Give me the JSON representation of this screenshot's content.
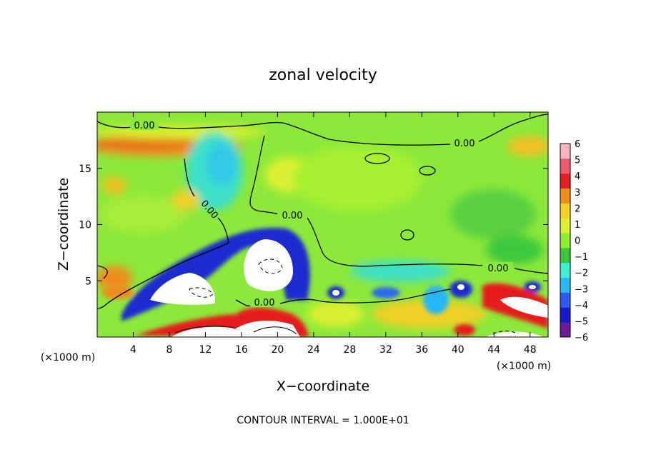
{
  "chart_data": {
    "type": "heatmap",
    "title": "zonal velocity",
    "xlabel": "X−coordinate",
    "ylabel": "Z−coordinate",
    "x_unit_label_left": "(×1000 m)",
    "x_unit_label_right": "(×1000 m)",
    "footer": "CONTOUR INTERVAL = 1.000E+01",
    "xlim": [
      0,
      50
    ],
    "ylim": [
      0,
      20
    ],
    "x_ticks": [
      4,
      8,
      12,
      16,
      20,
      24,
      28,
      32,
      36,
      40,
      44,
      48
    ],
    "y_ticks": [
      5,
      10,
      15
    ],
    "colorbar": {
      "min": -6,
      "max": 6,
      "tick_labels": [
        "6",
        "5",
        "4",
        "3",
        "2",
        "1",
        "0",
        "−1",
        "−2",
        "−3",
        "−4",
        "−5",
        "−6"
      ],
      "colors": [
        "#6a1a9a",
        "#1a1acd",
        "#2a5af0",
        "#28b8f5",
        "#3cf0d8",
        "#3cc83c",
        "#8cf030",
        "#dcf032",
        "#f5d020",
        "#f08c1a",
        "#e61e1e",
        "#f05a6e",
        "#f8b4c0"
      ]
    },
    "contour_labels": [
      "0.00",
      "0.00",
      "0.00",
      "0.00",
      "0.00"
    ]
  }
}
